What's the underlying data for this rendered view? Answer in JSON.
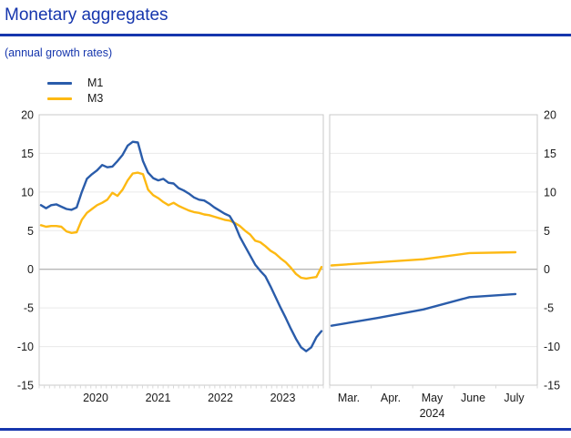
{
  "header": {
    "title": "Monetary aggregates",
    "subtitle": "(annual growth rates)"
  },
  "legend": [
    {
      "label": "M1",
      "color": "#2a5caa"
    },
    {
      "label": "M3",
      "color": "#fdb913"
    }
  ],
  "colors": {
    "heading_blue": "#1636ad",
    "m1_line": "#2a5caa",
    "m3_line": "#fdb913",
    "grid": "#eaeaea",
    "zero_line": "#9e9e9e",
    "panel_border": "#c9c9c9",
    "tick": "#d8d8d8",
    "axis_text": "#1a1a1a"
  },
  "chart_data": {
    "type": "line",
    "title": "Monetary aggregates",
    "subtitle": "(annual growth rates)",
    "grid": true,
    "legend_position": "top-left",
    "ylim": [
      -15,
      20
    ],
    "yticks": [
      20,
      15,
      10,
      5,
      0,
      -5,
      -10,
      -15
    ],
    "panels": [
      {
        "name": "history-panel",
        "x_labels": [
          "2020",
          "2021",
          "2022",
          "2023"
        ],
        "x_frequency": "monthly",
        "series": [
          {
            "name": "M1",
            "color": "#2a5caa",
            "values": [
              8.3,
              7.9,
              8.3,
              8.4,
              8.1,
              7.8,
              7.7,
              8.0,
              10.0,
              11.7,
              12.3,
              12.8,
              13.5,
              13.2,
              13.3,
              14.0,
              14.8,
              16.0,
              16.5,
              16.4,
              14.0,
              12.5,
              11.8,
              11.5,
              11.7,
              11.2,
              11.1,
              10.5,
              10.2,
              9.8,
              9.3,
              9.0,
              8.9,
              8.5,
              8.0,
              7.6,
              7.2,
              6.9,
              5.8,
              4.2,
              3.0,
              1.8,
              0.6,
              -0.2,
              -0.9,
              -2.2,
              -3.6,
              -5.0,
              -6.3,
              -7.7,
              -9.0,
              -10.1,
              -10.6,
              -10.1,
              -8.8,
              -8.0
            ]
          },
          {
            "name": "M3",
            "color": "#fdb913",
            "values": [
              5.7,
              5.5,
              5.6,
              5.6,
              5.5,
              4.9,
              4.7,
              4.8,
              6.4,
              7.3,
              7.8,
              8.3,
              8.6,
              9.0,
              9.9,
              9.5,
              10.3,
              11.5,
              12.4,
              12.5,
              12.3,
              10.3,
              9.6,
              9.2,
              8.7,
              8.3,
              8.6,
              8.2,
              7.9,
              7.6,
              7.4,
              7.3,
              7.1,
              7.0,
              6.8,
              6.6,
              6.4,
              6.3,
              6.0,
              5.6,
              5.0,
              4.5,
              3.7,
              3.5,
              3.0,
              2.4,
              2.0,
              1.4,
              0.9,
              0.2,
              -0.6,
              -1.1,
              -1.2,
              -1.1,
              -1.0,
              0.3
            ]
          }
        ]
      },
      {
        "name": "recent-panel",
        "x_labels": [
          "Mar.",
          "Apr.",
          "May",
          "June",
          "July"
        ],
        "x_axis_year": "2024",
        "series": [
          {
            "name": "M1",
            "color": "#2a5caa",
            "values": [
              -7.3,
              -6.3,
              -5.2,
              -3.6,
              -3.2
            ]
          },
          {
            "name": "M3",
            "color": "#fdb913",
            "values": [
              0.5,
              0.9,
              1.3,
              2.1,
              2.2
            ]
          }
        ]
      }
    ]
  }
}
